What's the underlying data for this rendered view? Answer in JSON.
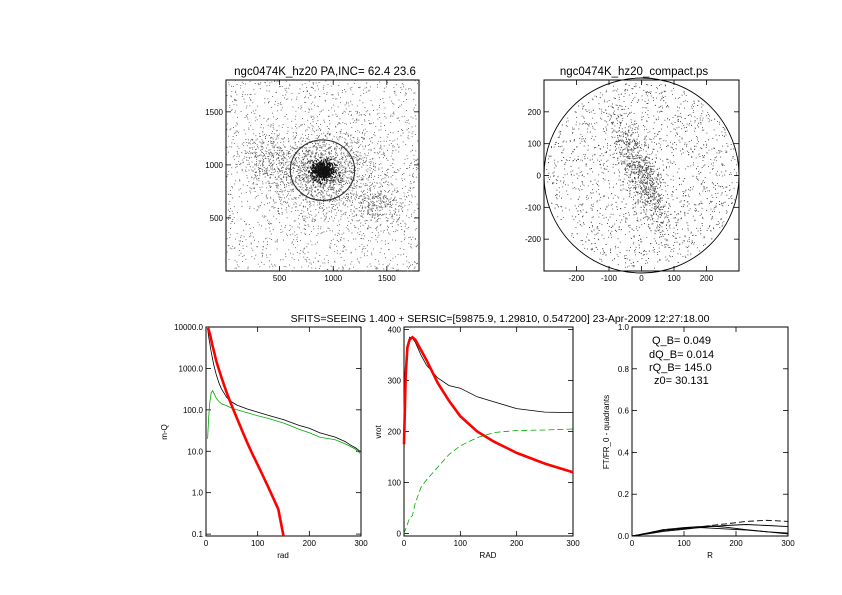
{
  "header": {
    "sfits_title": "SFITS=SEEING 1.400 + SERSIC=[59875.9, 1.29810, 0.547200]  23-Apr-2009 12:27:18.00"
  },
  "chart_data": [
    {
      "id": "image-left",
      "type": "scatter",
      "title": "ngc0474K_hz20 PA,INC= 62.4 23.6",
      "xlim": [
        0,
        1800
      ],
      "ylim": [
        0,
        1800
      ],
      "xticks": [
        500,
        1000,
        1500
      ],
      "yticks": [
        500,
        1000,
        1500
      ],
      "xlabel": "",
      "ylabel": "",
      "ellipse_center": [
        900,
        950
      ],
      "ellipse_radius": 300
    },
    {
      "id": "image-right",
      "type": "scatter",
      "title": "ngc0474K_hz20_compact.ps",
      "xlim": [
        -300,
        300
      ],
      "ylim": [
        -300,
        300
      ],
      "xticks": [
        -200,
        -100,
        0,
        100,
        200
      ],
      "yticks": [
        -200,
        -100,
        0,
        100,
        200
      ],
      "xlabel": "",
      "ylabel": "",
      "circle_radius": 300
    },
    {
      "id": "panel-mass",
      "type": "line",
      "xlabel": "rad",
      "ylabel": "m-Q",
      "xlim": [
        0,
        300
      ],
      "ylim": [
        0.09,
        10000
      ],
      "yscale": "log",
      "xticks": [
        0,
        100,
        200,
        300
      ],
      "ytick_labels": [
        "0.1",
        "1.0",
        "10.0",
        "100.0",
        "1000.0",
        "10000.0"
      ],
      "ytick_values": [
        0.1,
        1,
        10,
        100,
        1000,
        10000
      ],
      "series": [
        {
          "color": "#000000",
          "x": [
            3,
            6,
            10,
            15,
            20,
            25,
            30,
            40,
            50,
            60,
            80,
            100,
            120,
            150,
            180,
            200,
            220,
            250,
            270,
            280,
            290,
            298
          ],
          "y": [
            9000,
            5000,
            2500,
            1200,
            700,
            450,
            320,
            200,
            155,
            130,
            105,
            88,
            74,
            58,
            42,
            36,
            28,
            22,
            17,
            14,
            12,
            10
          ]
        },
        {
          "color": "#00aa00",
          "x": [
            3,
            5,
            7,
            10,
            13,
            16,
            20,
            25,
            30,
            40,
            50,
            60,
            80,
            100,
            120,
            150,
            180,
            200,
            220,
            250,
            270,
            280,
            290,
            298
          ],
          "y": [
            20,
            60,
            140,
            260,
            290,
            240,
            190,
            160,
            140,
            125,
            110,
            100,
            85,
            72,
            62,
            48,
            34,
            28,
            22,
            19,
            15,
            13,
            11,
            9
          ]
        },
        {
          "color": "#ff0000",
          "x": [
            4,
            8,
            12,
            16,
            20,
            30,
            40,
            50,
            60,
            70,
            80,
            90,
            100,
            110,
            120,
            130,
            140,
            150
          ],
          "y": [
            9500,
            6500,
            3800,
            2400,
            1500,
            600,
            260,
            125,
            62,
            31,
            16,
            8.5,
            4.7,
            2.6,
            1.4,
            0.75,
            0.4,
            0.09
          ]
        }
      ]
    },
    {
      "id": "panel-vrot",
      "type": "line",
      "xlabel": "RAD",
      "ylabel": "vrot",
      "xlim": [
        0,
        300
      ],
      "ylim": [
        -5,
        405
      ],
      "xticks": [
        0,
        100,
        200,
        300
      ],
      "yticks": [
        0,
        100,
        200,
        300,
        400
      ],
      "series": [
        {
          "color": "#000000",
          "x": [
            0,
            3,
            6,
            10,
            15,
            20,
            30,
            40,
            60,
            80,
            100,
            130,
            160,
            200,
            250,
            300
          ],
          "y": [
            160,
            300,
            365,
            385,
            383,
            375,
            350,
            330,
            305,
            290,
            285,
            268,
            258,
            245,
            238,
            237
          ]
        },
        {
          "color": "#00aa00",
          "x": [
            0,
            5,
            10,
            15,
            20,
            30,
            40,
            60,
            80,
            100,
            130,
            160,
            200,
            250,
            300
          ],
          "y": [
            0,
            15,
            30,
            35,
            60,
            90,
            105,
            130,
            155,
            172,
            188,
            198,
            202,
            203,
            205
          ]
        },
        {
          "color": "#ff0000",
          "x": [
            0,
            3,
            6,
            10,
            15,
            20,
            30,
            40,
            60,
            80,
            100,
            130,
            160,
            200,
            250,
            300
          ],
          "y": [
            175,
            310,
            365,
            380,
            385,
            380,
            360,
            340,
            295,
            260,
            230,
            200,
            180,
            158,
            137,
            120
          ]
        }
      ]
    },
    {
      "id": "panel-quadrants",
      "type": "line",
      "xlabel": "R",
      "ylabel": "FT/FR_0 - quadrants",
      "xlim": [
        0,
        300
      ],
      "ylim": [
        0,
        1.0
      ],
      "xticks": [
        0,
        100,
        200,
        300
      ],
      "yticks": [
        0,
        0.2,
        0.4,
        0.6,
        0.8,
        1.0
      ],
      "ytick_labels": [
        "0.0",
        "0.2",
        "0.4",
        "0.6",
        "0.8",
        "1.0"
      ],
      "annotations": {
        "q_b": "Q_B=  0.049",
        "dq_b": "dQ_B=  0.014",
        "rq_b": "rQ_B=  145.0",
        "z0": "z0= 30.131"
      },
      "series": [
        {
          "color": "#000000",
          "x": [
            0,
            30,
            60,
            100,
            130,
            150,
            180,
            220,
            260,
            300
          ],
          "y": [
            0,
            0.015,
            0.03,
            0.04,
            0.045,
            0.048,
            0.042,
            0.03,
            0.02,
            0.01
          ]
        },
        {
          "color": "#000000",
          "x": [
            0,
            30,
            60,
            100,
            130,
            150,
            180,
            220,
            260,
            300
          ],
          "y": [
            0,
            0.01,
            0.022,
            0.032,
            0.04,
            0.045,
            0.05,
            0.055,
            0.05,
            0.045
          ]
        },
        {
          "color": "#000000",
          "x": [
            0,
            30,
            60,
            100,
            130,
            150,
            180,
            220,
            260,
            300
          ],
          "y": [
            0,
            0.012,
            0.026,
            0.036,
            0.04,
            0.038,
            0.034,
            0.028,
            0.02,
            0.014
          ]
        },
        {
          "color": "#000000",
          "x": [
            0,
            30,
            60,
            100,
            130,
            150,
            180,
            220,
            260,
            300
          ],
          "y": [
            0,
            0.014,
            0.03,
            0.038,
            0.042,
            0.05,
            0.058,
            0.07,
            0.075,
            0.07
          ]
        }
      ]
    }
  ]
}
